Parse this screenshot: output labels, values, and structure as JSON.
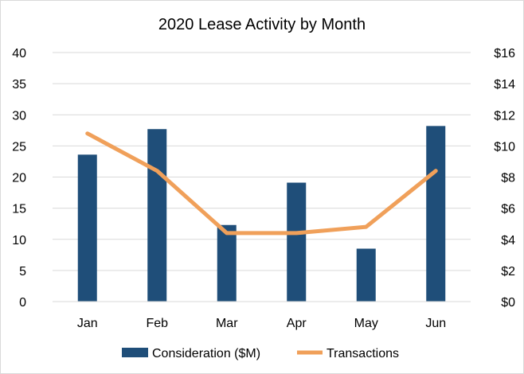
{
  "chart_data": {
    "type": "bar",
    "title": "2020 Lease Activity by Month",
    "categories": [
      "Jan",
      "Feb",
      "Mar",
      "Apr",
      "May",
      "Jun"
    ],
    "series": [
      {
        "name": "Consideration ($M)",
        "type": "bar",
        "axis": "left",
        "color": "#1f4e79",
        "values": [
          23.6,
          27.7,
          12.3,
          19.1,
          8.5,
          28.2
        ]
      },
      {
        "name": "Transactions",
        "type": "line",
        "axis": "right",
        "color": "#f0a05a",
        "values": [
          10.8,
          8.4,
          4.4,
          4.4,
          4.8,
          8.4
        ]
      }
    ],
    "y_left": {
      "ylim": [
        0,
        40
      ],
      "ticks": [
        "0",
        "5",
        "10",
        "15",
        "20",
        "25",
        "30",
        "35",
        "40"
      ]
    },
    "y_right": {
      "ylim": [
        0,
        16
      ],
      "ticks": [
        "$0",
        "$2",
        "$4",
        "$6",
        "$8",
        "$10",
        "$12",
        "$14",
        "$16"
      ]
    },
    "grid": true,
    "legend_position": "bottom"
  }
}
